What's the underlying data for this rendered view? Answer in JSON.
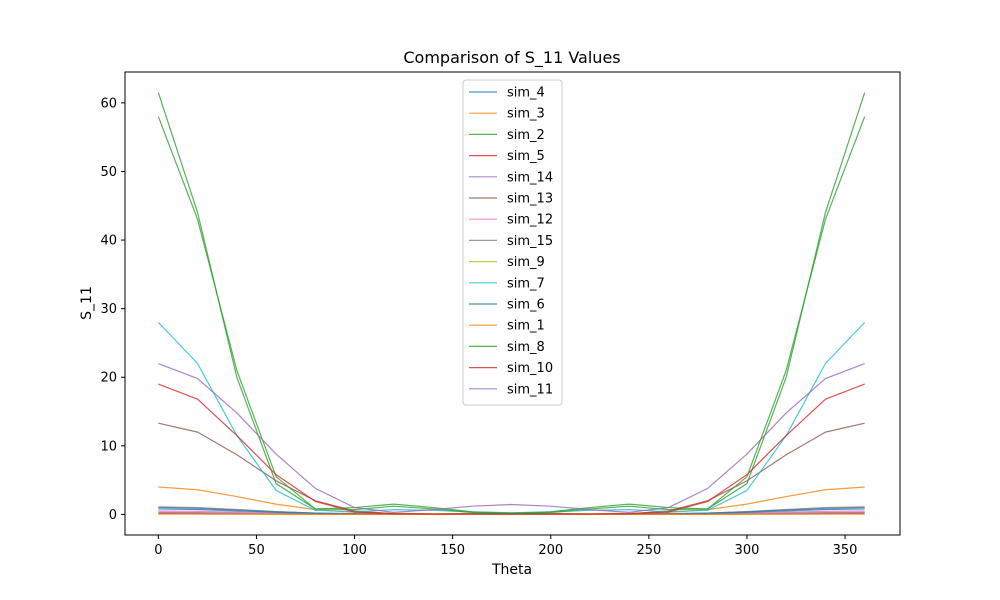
{
  "chart_data": {
    "type": "line",
    "title": "Comparison of S_11 Values",
    "xlabel": "Theta",
    "ylabel": "S_11",
    "xlim": [
      -17,
      378
    ],
    "ylim": [
      -3,
      64.5
    ],
    "xticks": [
      0,
      50,
      100,
      150,
      200,
      250,
      300,
      350
    ],
    "yticks": [
      0,
      10,
      20,
      30,
      40,
      50,
      60
    ],
    "grid": false,
    "legend_position": "top-center",
    "x": [
      0,
      20,
      40,
      60,
      80,
      100,
      120,
      140,
      160,
      180,
      200,
      220,
      240,
      260,
      280,
      300,
      320,
      340,
      360
    ],
    "series": [
      {
        "name": "sim_4",
        "color": "#1f77b4",
        "values": [
          1.0,
          0.9,
          0.65,
          0.4,
          0.2,
          0.1,
          0.05,
          0.05,
          0.1,
          0.15,
          0.1,
          0.05,
          0.05,
          0.1,
          0.2,
          0.4,
          0.65,
          0.9,
          1.0
        ]
      },
      {
        "name": "sim_3",
        "color": "#ff7f0e",
        "values": [
          4.0,
          3.6,
          2.6,
          1.5,
          0.7,
          0.3,
          0.15,
          0.1,
          0.15,
          0.2,
          0.15,
          0.1,
          0.15,
          0.3,
          0.7,
          1.5,
          2.6,
          3.6,
          4.0
        ]
      },
      {
        "name": "sim_2",
        "color": "#2ca02c",
        "values": [
          61.5,
          44.0,
          20.0,
          4.5,
          0.8,
          1.0,
          1.5,
          1.0,
          0.4,
          0.2,
          0.4,
          1.0,
          1.5,
          1.0,
          0.8,
          4.5,
          20.0,
          44.0,
          61.5
        ]
      },
      {
        "name": "sim_5",
        "color": "#d62728",
        "values": [
          0.15,
          0.14,
          0.1,
          0.07,
          0.04,
          0.02,
          0.02,
          0.02,
          0.02,
          0.02,
          0.02,
          0.02,
          0.02,
          0.02,
          0.04,
          0.07,
          0.1,
          0.14,
          0.15
        ]
      },
      {
        "name": "sim_14",
        "color": "#9467bd",
        "values": [
          0.3,
          0.27,
          0.2,
          0.12,
          0.06,
          0.03,
          0.02,
          0.02,
          0.03,
          0.04,
          0.03,
          0.02,
          0.02,
          0.03,
          0.06,
          0.12,
          0.2,
          0.27,
          0.3
        ]
      },
      {
        "name": "sim_13",
        "color": "#8c564b",
        "values": [
          13.3,
          12.0,
          8.7,
          4.9,
          2.0,
          0.5,
          0.1,
          0.05,
          0.05,
          0.05,
          0.05,
          0.05,
          0.1,
          0.5,
          2.0,
          4.9,
          8.7,
          12.0,
          13.3
        ]
      },
      {
        "name": "sim_12",
        "color": "#e377c2",
        "values": [
          0.5,
          0.45,
          0.33,
          0.2,
          0.1,
          0.05,
          0.03,
          0.03,
          0.04,
          0.05,
          0.04,
          0.03,
          0.03,
          0.05,
          0.1,
          0.2,
          0.33,
          0.45,
          0.5
        ]
      },
      {
        "name": "sim_15",
        "color": "#7f7f7f",
        "values": [
          1.1,
          1.0,
          0.72,
          0.42,
          0.2,
          0.1,
          0.06,
          0.06,
          0.1,
          0.12,
          0.1,
          0.06,
          0.06,
          0.1,
          0.2,
          0.42,
          0.72,
          1.0,
          1.1
        ]
      },
      {
        "name": "sim_9",
        "color": "#bcbd22",
        "values": [
          0.05,
          0.05,
          0.04,
          0.03,
          0.02,
          0.01,
          0.01,
          0.01,
          0.01,
          0.01,
          0.01,
          0.01,
          0.01,
          0.01,
          0.02,
          0.03,
          0.04,
          0.05,
          0.05
        ]
      },
      {
        "name": "sim_7",
        "color": "#17becf",
        "values": [
          28.0,
          22.0,
          11.5,
          3.5,
          0.6,
          0.4,
          0.7,
          0.6,
          0.35,
          0.25,
          0.35,
          0.6,
          0.7,
          0.4,
          0.6,
          3.5,
          11.5,
          22.0,
          28.0
        ]
      },
      {
        "name": "sim_6",
        "color": "#1f77b4",
        "values": [
          0.8,
          0.72,
          0.52,
          0.3,
          0.15,
          0.08,
          0.05,
          0.05,
          0.08,
          0.1,
          0.08,
          0.05,
          0.05,
          0.08,
          0.15,
          0.3,
          0.52,
          0.72,
          0.8
        ]
      },
      {
        "name": "sim_1",
        "color": "#ff7f0e",
        "values": [
          0.05,
          0.05,
          0.04,
          0.03,
          0.02,
          0.01,
          0.01,
          0.01,
          0.01,
          0.01,
          0.01,
          0.01,
          0.01,
          0.01,
          0.02,
          0.03,
          0.04,
          0.05,
          0.05
        ]
      },
      {
        "name": "sim_8",
        "color": "#2ca02c",
        "values": [
          58.0,
          43.0,
          21.0,
          5.5,
          0.8,
          0.7,
          1.2,
          0.8,
          0.3,
          0.15,
          0.3,
          0.8,
          1.2,
          0.7,
          0.8,
          5.5,
          21.0,
          43.0,
          58.0
        ]
      },
      {
        "name": "sim_10",
        "color": "#d62728",
        "values": [
          19.0,
          16.8,
          11.5,
          5.8,
          1.9,
          0.35,
          0.1,
          0.05,
          0.05,
          0.05,
          0.05,
          0.05,
          0.1,
          0.35,
          1.9,
          5.8,
          11.5,
          16.8,
          19.0
        ]
      },
      {
        "name": "sim_11",
        "color": "#9467bd",
        "values": [
          22.0,
          19.8,
          14.8,
          8.8,
          3.8,
          1.0,
          0.3,
          0.7,
          1.2,
          1.45,
          1.2,
          0.7,
          0.3,
          1.0,
          3.8,
          8.8,
          14.8,
          19.8,
          22.0
        ]
      }
    ]
  }
}
